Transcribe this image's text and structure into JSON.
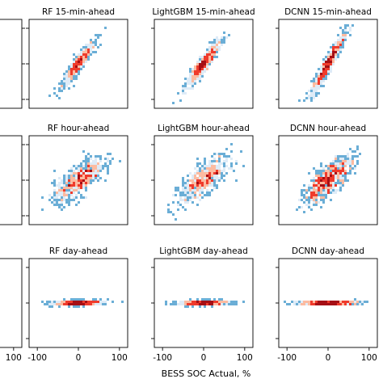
{
  "chart_data": {
    "type": "heatmap",
    "xlabel": "BESS SOC Actual, %",
    "xlim": [
      -120,
      120
    ],
    "xticks": [
      "-100",
      "0",
      "100"
    ],
    "colormap": [
      "#08306b",
      "#2171b5",
      "#6baed6",
      "#deebf7",
      "#fcbba1",
      "#ef3b2c",
      "#a50f15"
    ],
    "grid": false,
    "panels": [
      {
        "title": "RF 15-min-ahead",
        "row": 0,
        "col": 1,
        "spread_x": 20,
        "spread_y": 30,
        "corr": 0.93,
        "density": "high"
      },
      {
        "title": "LightGBM 15-min-ahead",
        "row": 0,
        "col": 2,
        "spread_x": 20,
        "spread_y": 30,
        "corr": 0.93,
        "density": "high"
      },
      {
        "title": "DCNN 15-min-ahead",
        "row": 0,
        "col": 3,
        "spread_x": 20,
        "spread_y": 40,
        "corr": 0.95,
        "density": "high"
      },
      {
        "title": "RF hour-ahead",
        "row": 1,
        "col": 1,
        "spread_x": 30,
        "spread_y": 30,
        "corr": 0.75,
        "density": "high"
      },
      {
        "title": "LightGBM hour-ahead",
        "row": 1,
        "col": 2,
        "spread_x": 30,
        "spread_y": 30,
        "corr": 0.75,
        "density": "high"
      },
      {
        "title": "DCNN hour-ahead",
        "row": 1,
        "col": 3,
        "spread_x": 30,
        "spread_y": 32,
        "corr": 0.78,
        "density": "high"
      },
      {
        "title": "RF day-ahead",
        "row": 2,
        "col": 1,
        "spread_x": 30,
        "spread_y": 3,
        "corr": 0.2,
        "density": "high"
      },
      {
        "title": "LightGBM day-ahead",
        "row": 2,
        "col": 2,
        "spread_x": 30,
        "spread_y": 3,
        "corr": 0.2,
        "density": "high"
      },
      {
        "title": "DCNN day-ahead",
        "row": 2,
        "col": 3,
        "spread_x": 35,
        "spread_y": 2,
        "corr": 0.1,
        "density": "high"
      }
    ]
  }
}
